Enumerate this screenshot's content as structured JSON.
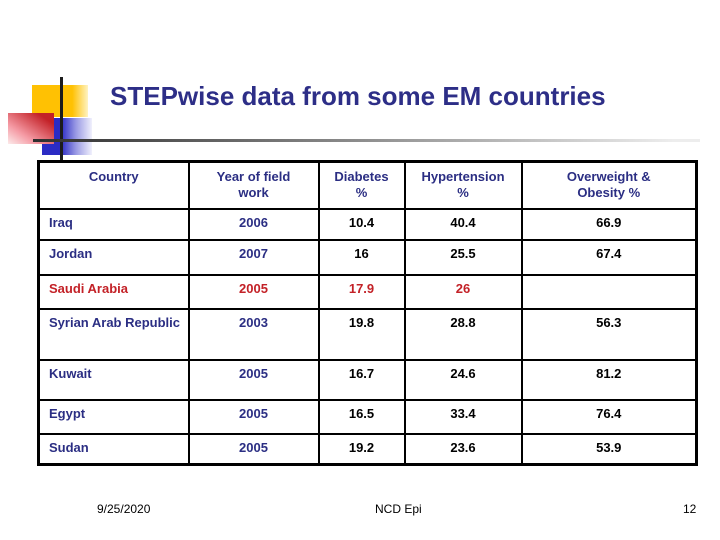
{
  "slide": {
    "title": "STEPwise data from some EM countries",
    "footer": {
      "date": "9/25/2020",
      "center_label": "NCD Epi",
      "page_number": "12"
    }
  },
  "colors": {
    "title_navy": "#2D2E87",
    "table_navy": "#2B2E83",
    "highlight_red": "#C32127",
    "accent_yellow": "#FFC103",
    "accent_blue": "#2B2BC4"
  },
  "table": {
    "columns": [
      "Country",
      "Year of field\nwork",
      "Diabetes\n%",
      "Hypertension\n%",
      "Overweight &\nObesity %"
    ],
    "rows": [
      {
        "country": "Iraq",
        "year": "2006",
        "diabetes": "10.4",
        "hypertension": "40.4",
        "overweight": "66.9",
        "highlight": false
      },
      {
        "country": "Jordan",
        "year": "2007",
        "diabetes": "16",
        "hypertension": "25.5",
        "overweight": "67.4",
        "highlight": false
      },
      {
        "country": "Saudi Arabia",
        "year": "2005",
        "diabetes": "17.9",
        "hypertension": "26",
        "overweight": "",
        "highlight": true
      },
      {
        "country": "Syrian Arab Republic",
        "year": "2003",
        "diabetes": "19.8",
        "hypertension": "28.8",
        "overweight": "56.3",
        "highlight": false
      },
      {
        "country": "Kuwait",
        "year": "2005",
        "diabetes": "16.7",
        "hypertension": "24.6",
        "overweight": "81.2",
        "highlight": false
      },
      {
        "country": "Egypt",
        "year": "2005",
        "diabetes": "16.5",
        "hypertension": "33.4",
        "overweight": "76.4",
        "highlight": false
      },
      {
        "country": "Sudan",
        "year": "2005",
        "diabetes": "19.2",
        "hypertension": "23.6",
        "overweight": "53.9",
        "highlight": false
      }
    ]
  }
}
